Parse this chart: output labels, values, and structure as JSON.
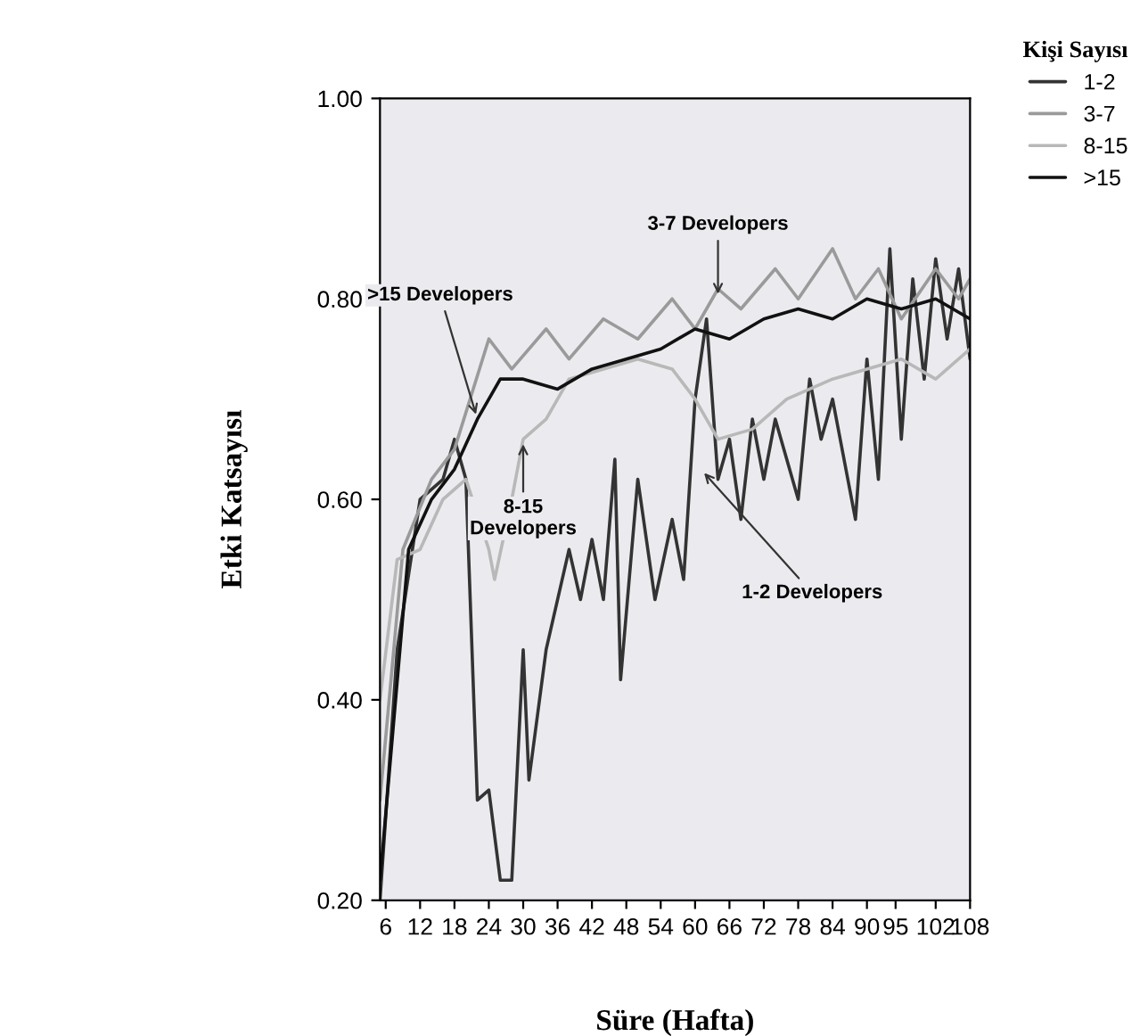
{
  "chart_data": {
    "type": "line",
    "xlabel": "Süre (Hafta)",
    "ylabel": "Etki Katsayısı",
    "legend_title": "Kişi Sayısı",
    "legend": "top right",
    "grid": false,
    "xlim": [
      5,
      108
    ],
    "ylim": [
      0.2,
      1.0
    ],
    "xticks": [
      6,
      12,
      18,
      24,
      30,
      36,
      42,
      48,
      54,
      60,
      66,
      72,
      78,
      84,
      90,
      95,
      102,
      108
    ],
    "yticks": [
      {
        "value": 0.2,
        "label": "0.20"
      },
      {
        "value": 0.4,
        "label": "0.40"
      },
      {
        "value": 0.6,
        "label": "0.60"
      },
      {
        "value": 0.8,
        "label": "0.80"
      },
      {
        "value": 1.0,
        "label": "1.00"
      }
    ],
    "series": [
      {
        "name": "1-2",
        "color": "#333333",
        "x": [
          5,
          8,
          12,
          16,
          18,
          20,
          22,
          24,
          26,
          28,
          30,
          31,
          34,
          38,
          40,
          42,
          44,
          46,
          47,
          50,
          53,
          56,
          58,
          60,
          62,
          64,
          66,
          68,
          70,
          72,
          74,
          78,
          80,
          82,
          84,
          88,
          90,
          92,
          94,
          96,
          98,
          100,
          102,
          104,
          106,
          108
        ],
        "values": [
          0.2,
          0.45,
          0.6,
          0.62,
          0.66,
          0.62,
          0.3,
          0.31,
          0.22,
          0.22,
          0.45,
          0.32,
          0.45,
          0.55,
          0.5,
          0.56,
          0.5,
          0.64,
          0.42,
          0.62,
          0.5,
          0.58,
          0.52,
          0.7,
          0.78,
          0.62,
          0.66,
          0.58,
          0.68,
          0.62,
          0.68,
          0.6,
          0.72,
          0.66,
          0.7,
          0.58,
          0.74,
          0.62,
          0.85,
          0.66,
          0.82,
          0.72,
          0.84,
          0.76,
          0.83,
          0.74
        ]
      },
      {
        "name": "3-7",
        "color": "#9a9a9a",
        "x": [
          5,
          9,
          14,
          18,
          24,
          28,
          34,
          38,
          44,
          50,
          56,
          60,
          64,
          68,
          74,
          78,
          84,
          88,
          92,
          96,
          102,
          106,
          108
        ],
        "values": [
          0.3,
          0.55,
          0.62,
          0.65,
          0.76,
          0.73,
          0.77,
          0.74,
          0.78,
          0.76,
          0.8,
          0.77,
          0.81,
          0.79,
          0.83,
          0.8,
          0.85,
          0.8,
          0.83,
          0.78,
          0.83,
          0.8,
          0.82
        ]
      },
      {
        "name": "8-15",
        "color": "#b8b8b8",
        "x": [
          5,
          8,
          12,
          16,
          20,
          24,
          25,
          28,
          30,
          34,
          38,
          44,
          50,
          56,
          60,
          64,
          70,
          76,
          84,
          90,
          96,
          102,
          108
        ],
        "values": [
          0.4,
          0.54,
          0.55,
          0.6,
          0.62,
          0.55,
          0.52,
          0.6,
          0.66,
          0.68,
          0.72,
          0.73,
          0.74,
          0.73,
          0.7,
          0.66,
          0.67,
          0.7,
          0.72,
          0.73,
          0.74,
          0.72,
          0.75
        ]
      },
      {
        "name": ">15",
        "color": "#111111",
        "x": [
          5,
          10,
          14,
          18,
          22,
          26,
          30,
          36,
          42,
          48,
          54,
          60,
          66,
          72,
          78,
          84,
          90,
          96,
          102,
          108
        ],
        "values": [
          0.22,
          0.55,
          0.6,
          0.63,
          0.68,
          0.72,
          0.72,
          0.71,
          0.73,
          0.74,
          0.75,
          0.77,
          0.76,
          0.78,
          0.79,
          0.78,
          0.8,
          0.79,
          0.8,
          0.78
        ]
      }
    ],
    "annotations": [
      {
        "text": ">15 Developers",
        "x": 22,
        "y": 0.68
      },
      {
        "text": "3-7 Developers",
        "x": 64,
        "y": 0.8
      },
      {
        "text": "8-15\nDevelopers",
        "x": 30,
        "y": 0.66
      },
      {
        "text": "1-2 Developers",
        "x": 61,
        "y": 0.63
      }
    ]
  }
}
